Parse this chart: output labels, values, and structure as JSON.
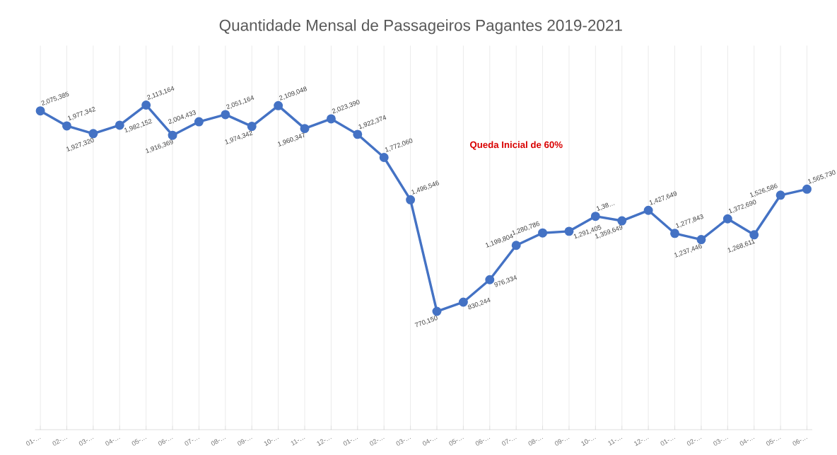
{
  "chart_data": {
    "type": "line",
    "title": "Quantidade Mensal de Passageiros Pagantes 2019-2021",
    "categories": [
      "01-…",
      "02-…",
      "03-…",
      "04-…",
      "05-…",
      "06-…",
      "07-…",
      "08-…",
      "09-…",
      "10-…",
      "11-…",
      "12-…",
      "01-…",
      "02-…",
      "03-…",
      "04-…",
      "05-…",
      "06-…",
      "07-…",
      "08-…",
      "09-…",
      "10-…",
      "11-…",
      "12-…",
      "01-…",
      "02-…",
      "03-…",
      "04-…",
      "05-…",
      "06-…"
    ],
    "series": [
      {
        "color": "#4472c4",
        "values": [
          2075385,
          1977342,
          1927320,
          1982152,
          2113164,
          1916369,
          2004433,
          2051164,
          1974342,
          2109048,
          1960347,
          2023390,
          1922374,
          1772060,
          1496546,
          770150,
          830244,
          976334,
          1199804,
          1280786,
          1291405,
          1389000,
          1359649,
          1427649,
          1277843,
          1237446,
          1372690,
          1268611,
          1526586,
          1565730
        ],
        "value_labels": [
          "2,075,385",
          "1,977,342",
          "1,927,320",
          "1,982,152",
          "2,113,164",
          "1,916,369",
          "2,004,433",
          "2,051,164",
          "1,974,342",
          "2,109,048",
          "1,960,347",
          "2,023,390",
          "1,922,374",
          "1,772,060",
          "1,496,546",
          "770,150",
          "830,244",
          "976,334",
          "1,199,804",
          "1,280,786",
          "1,291,405",
          "1,38…",
          "1,359,649",
          "1,427,649",
          "1,277,843",
          "1,237,446",
          "1,372,690",
          "1,268,611",
          "1,526,586",
          "1,565,730"
        ]
      }
    ],
    "ylim": [
      0,
      2500000
    ],
    "tick_labels": "x",
    "grid": true,
    "marker": "circle",
    "line_style": "solid",
    "annotations": [
      "Queda Inicial de 60%"
    ]
  }
}
